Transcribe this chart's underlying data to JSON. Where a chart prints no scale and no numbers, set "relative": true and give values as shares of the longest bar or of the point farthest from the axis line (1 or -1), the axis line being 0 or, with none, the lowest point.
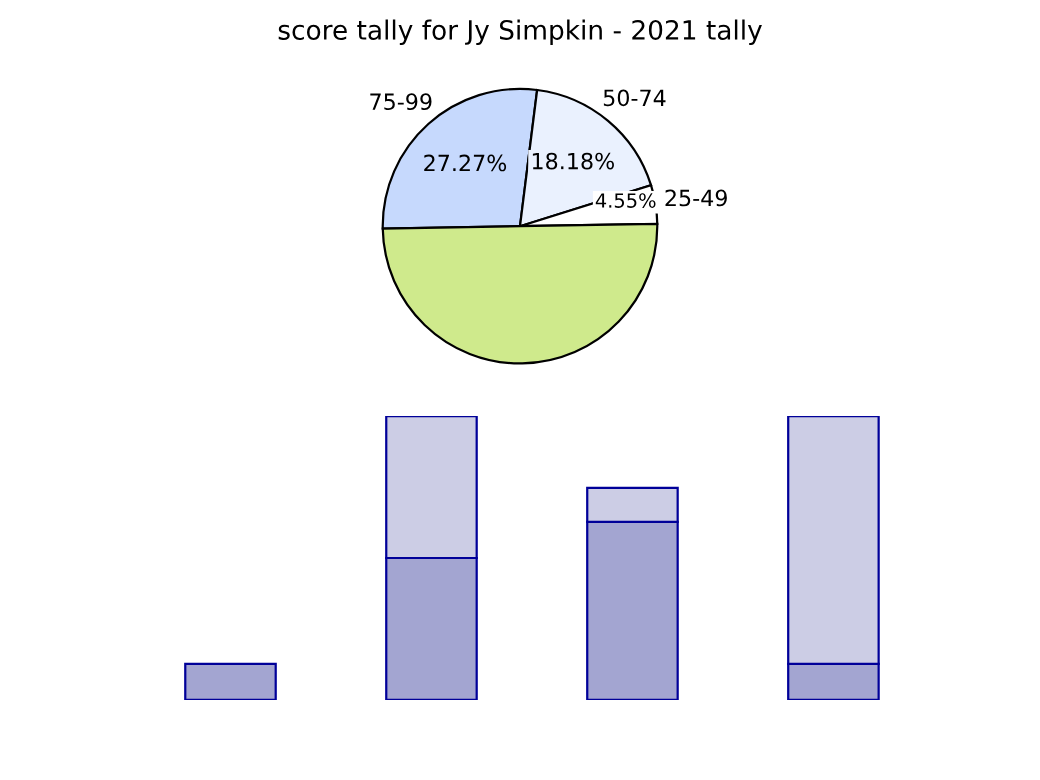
{
  "chart_data": [
    {
      "type": "pie",
      "title": "score tally for Jy Simpkin - 2021 tally",
      "categories": [
        "75-99",
        "50-74",
        "25-49",
        null
      ],
      "values": [
        27.27,
        18.18,
        4.55,
        50
      ],
      "colors": [
        "#c6d9fd",
        "#eaf1fe",
        "#ffffff",
        "#cfea8c"
      ],
      "value_labels": [
        "27.27%",
        "18.18%",
        "4.55%",
        null
      ],
      "legend": false
    },
    {
      "type": "bar",
      "relative": true,
      "stacked": true,
      "categories": [
        null,
        null,
        null,
        null
      ],
      "series": [
        {
          "color": "#a3a5d1",
          "values": [
            0.127,
            0.5,
            0.627,
            0.127
          ]
        },
        {
          "color": "#cccde5",
          "values": [
            null,
            0.5,
            0.12,
            0.873
          ]
        }
      ],
      "legend": false
    }
  ]
}
